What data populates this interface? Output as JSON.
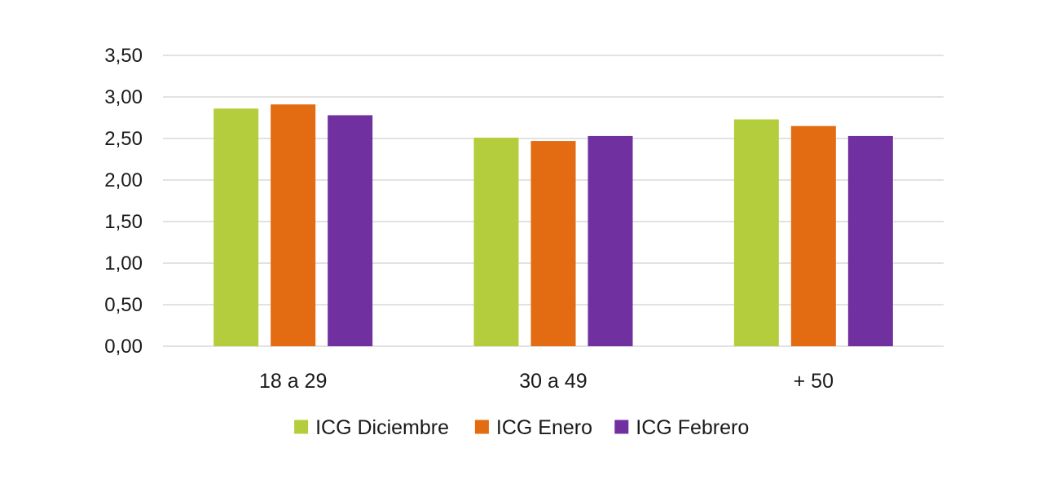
{
  "chart_data": {
    "type": "bar",
    "title": "",
    "xlabel": "",
    "ylabel": "",
    "categories": [
      "18 a 29",
      "30 a 49",
      "+ 50"
    ],
    "series": [
      {
        "name": "ICG Diciembre",
        "color": "#b3cd3c",
        "values": [
          2.86,
          2.51,
          2.73
        ]
      },
      {
        "name": "ICG Enero",
        "color": "#e36c12",
        "values": [
          2.91,
          2.47,
          2.65
        ]
      },
      {
        "name": "ICG Febrero",
        "color": "#7030a0",
        "values": [
          2.78,
          2.53,
          2.53
        ]
      }
    ],
    "ylim": [
      0,
      3.5
    ],
    "y_ticks": [
      "0,00",
      "0,50",
      "1,00",
      "1,50",
      "2,00",
      "2,50",
      "3,00",
      "3,50"
    ],
    "grid": true,
    "legend_position": "bottom"
  }
}
